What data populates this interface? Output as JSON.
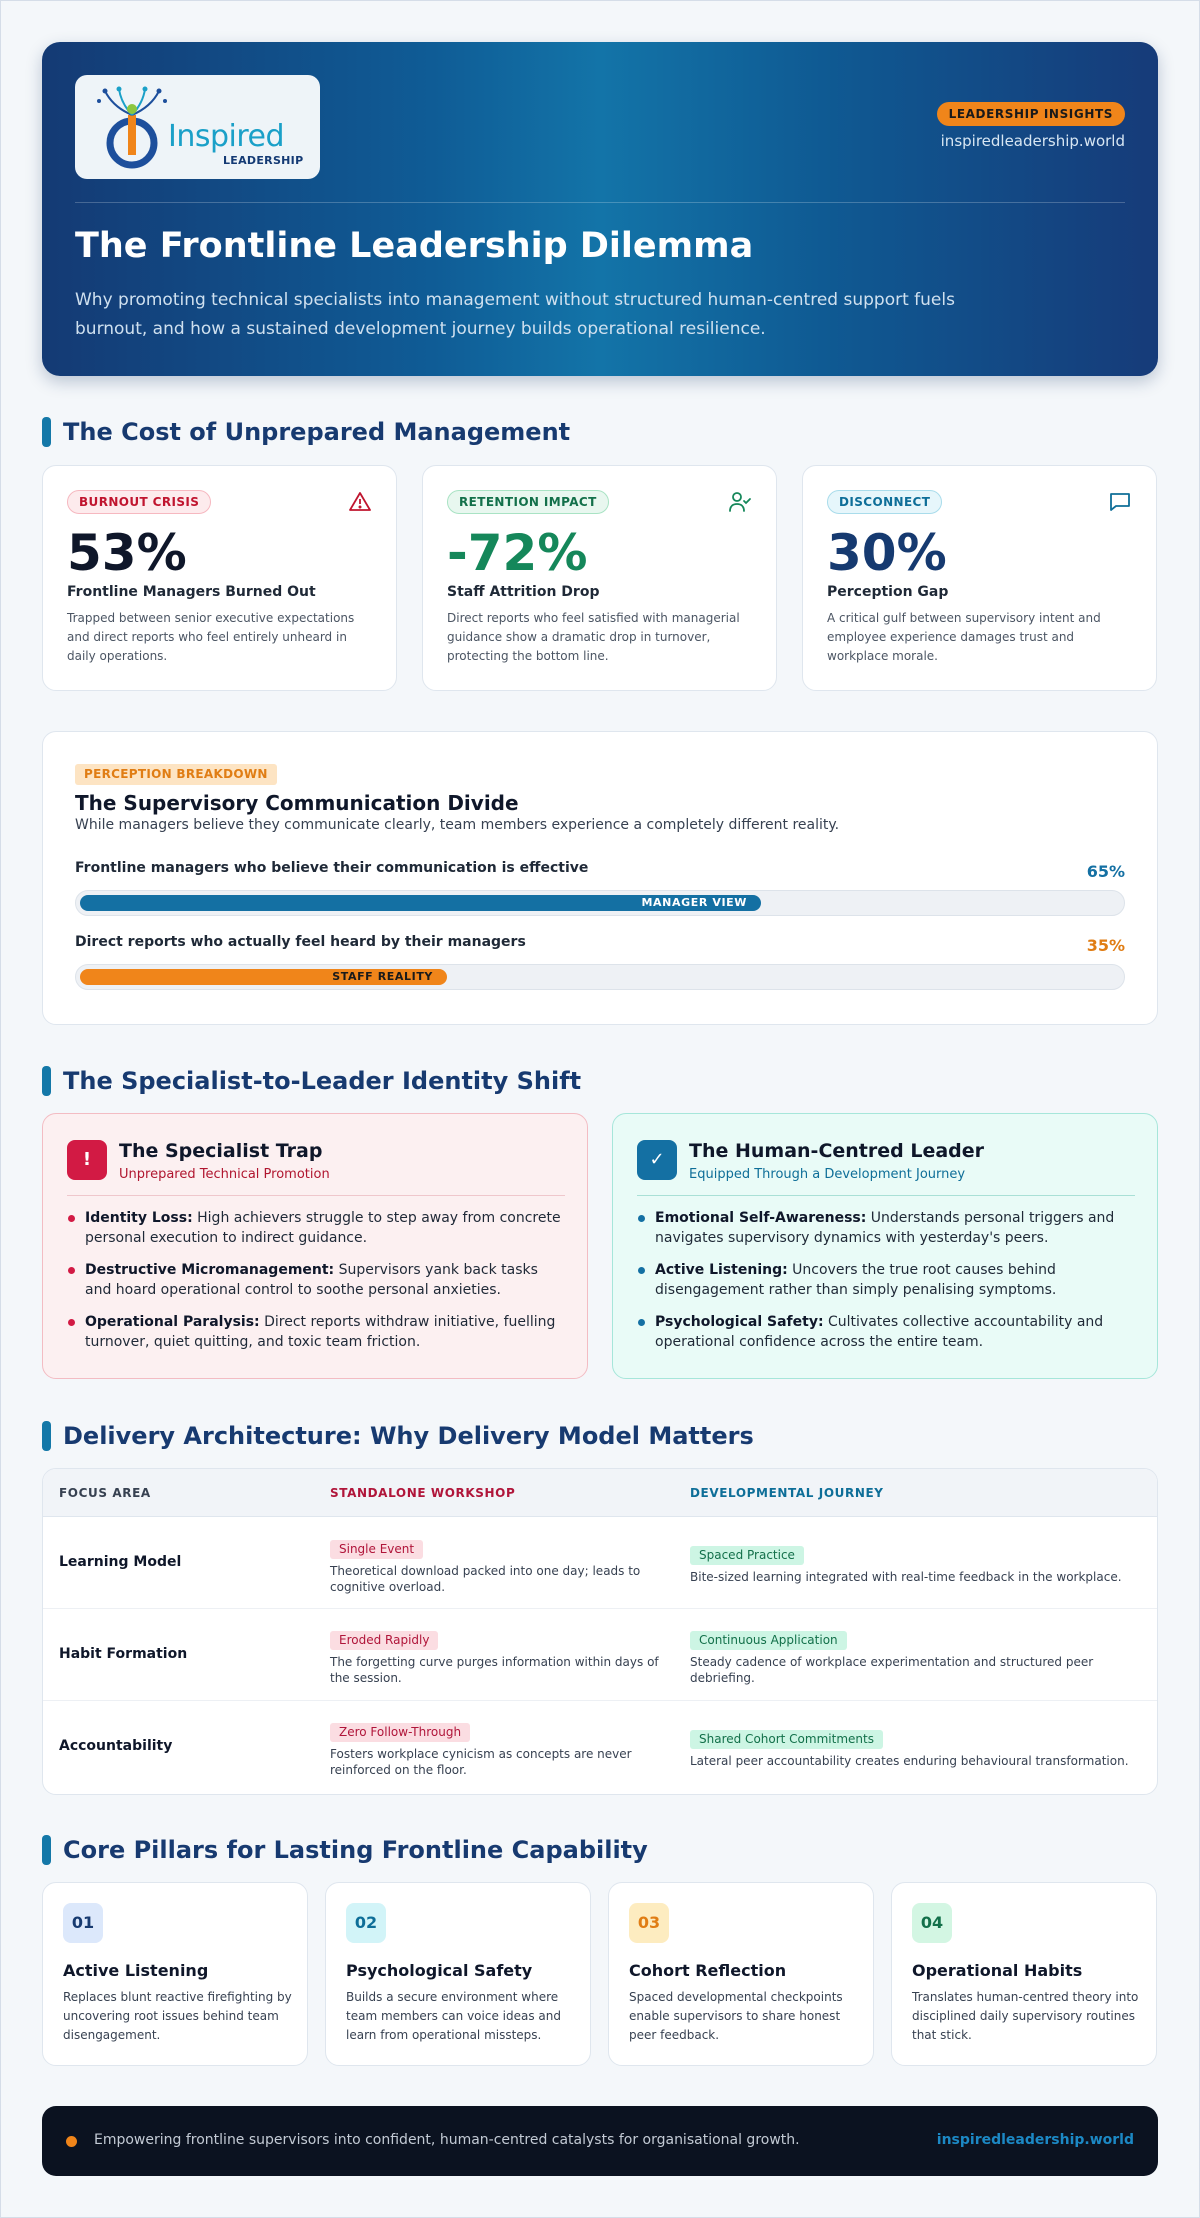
{
  "header": {
    "logo_word": "Inspired",
    "logo_sub": "LEADERSHIP",
    "badge": "LEADERSHIP INSIGHTS",
    "site": "inspiredleadership.world",
    "title": "The Frontline Leadership Dilemma",
    "subtitle": "Why promoting technical specialists into management without structured human-centred support fuels burnout, and how a sustained development journey builds operational resilience."
  },
  "sections": {
    "cost": "The Cost of Unprepared Management",
    "identity": "The Specialist-to-Leader Identity Shift",
    "delivery": "Delivery Architecture: Why Delivery Model Matters",
    "pillars": "Core Pillars for Lasting Frontline Capability"
  },
  "stats": [
    {
      "tag": "BURNOUT CRISIS",
      "icon": "warning-triangle-icon",
      "value": "53%",
      "label": "Frontline Managers Burned Out",
      "desc": "Trapped between senior executive expectations and direct reports who feel entirely unheard in daily operations.",
      "color": "#c0152f"
    },
    {
      "tag": "RETENTION IMPACT",
      "icon": "user-check-icon",
      "value": "-72%",
      "label": "Staff Attrition Drop",
      "desc": "Direct reports who feel satisfied with managerial guidance show a dramatic drop in turnover, protecting the bottom line.",
      "color": "#15875a"
    },
    {
      "tag": "DISCONNECT",
      "icon": "chat-bubble-icon",
      "value": "30%",
      "label": "Perception Gap",
      "desc": "A critical gulf between supervisory intent and employee experience damages trust and workplace morale.",
      "color": "#163a70"
    }
  ],
  "perception": {
    "tag": "PERCEPTION BREAKDOWN",
    "title": "The Supervisory Communication Divide",
    "subtitle": "While managers believe they communicate clearly, team members experience a completely different reality.",
    "bars": [
      {
        "label": "Frontline managers who believe their communication is effective",
        "pct": "65%",
        "fill_label": "MANAGER VIEW",
        "value": 0.65,
        "color": "#1470a3"
      },
      {
        "label": "Direct reports who actually feel heard by their managers",
        "pct": "35%",
        "fill_label": "STAFF REALITY",
        "value": 0.35,
        "color": "#f0851a"
      }
    ]
  },
  "identity": {
    "trap": {
      "icon": "!",
      "title": "The Specialist Trap",
      "subtitle": "Unprepared Technical Promotion",
      "items": [
        {
          "bold": "Identity Loss:",
          "text": " High achievers struggle to step away from concrete personal execution to indirect guidance."
        },
        {
          "bold": "Destructive Micromanagement:",
          "text": " Supervisors yank back tasks and hoard operational control to soothe personal anxieties."
        },
        {
          "bold": "Operational Paralysis:",
          "text": " Direct reports withdraw initiative, fuelling turnover, quiet quitting, and toxic team friction."
        }
      ]
    },
    "leader": {
      "icon": "✓",
      "title": "The Human-Centred Leader",
      "subtitle": "Equipped Through a Development Journey",
      "items": [
        {
          "bold": "Emotional Self-Awareness:",
          "text": " Understands personal triggers and navigates supervisory dynamics with yesterday's peers."
        },
        {
          "bold": "Active Listening:",
          "text": " Uncovers the true root causes behind disengagement rather than simply penalising symptoms."
        },
        {
          "bold": "Psychological Safety:",
          "text": " Cultivates collective accountability and operational confidence across the entire team."
        }
      ]
    }
  },
  "table": {
    "headers": [
      "FOCUS AREA",
      "STANDALONE WORKSHOP",
      "DEVELOPMENTAL JOURNEY"
    ],
    "rows": [
      {
        "area": "Learning Model",
        "workshop_tag": "Single Event",
        "workshop_desc": "Theoretical download packed into one day; leads to cognitive overload.",
        "journey_tag": "Spaced Practice",
        "journey_desc": "Bite-sized learning integrated with real-time feedback in the workplace."
      },
      {
        "area": "Habit Formation",
        "workshop_tag": "Eroded Rapidly",
        "workshop_desc": "The forgetting curve purges information within days of the session.",
        "journey_tag": "Continuous Application",
        "journey_desc": "Steady cadence of workplace experimentation and structured peer debriefing."
      },
      {
        "area": "Accountability",
        "workshop_tag": "Zero Follow-Through",
        "workshop_desc": "Fosters workplace cynicism as concepts are never reinforced on the floor.",
        "journey_tag": "Shared Cohort Commitments",
        "journey_desc": "Lateral peer accountability creates enduring behavioural transformation."
      }
    ]
  },
  "pillars": [
    {
      "num": "01",
      "title": "Active Listening",
      "desc": "Replaces blunt reactive firefighting by uncovering root issues behind team disengagement."
    },
    {
      "num": "02",
      "title": "Psychological Safety",
      "desc": "Builds a secure environment where team members can voice ideas and learn from operational missteps."
    },
    {
      "num": "03",
      "title": "Cohort Reflection",
      "desc": "Spaced developmental checkpoints enable supervisors to share honest peer feedback."
    },
    {
      "num": "04",
      "title": "Operational Habits",
      "desc": "Translates human-centred theory into disciplined daily supervisory routines that stick."
    }
  ],
  "footer": {
    "text": "Empowering frontline supervisors into confident, human-centred catalysts for organisational growth.",
    "link": "inspiredleadership.world"
  }
}
